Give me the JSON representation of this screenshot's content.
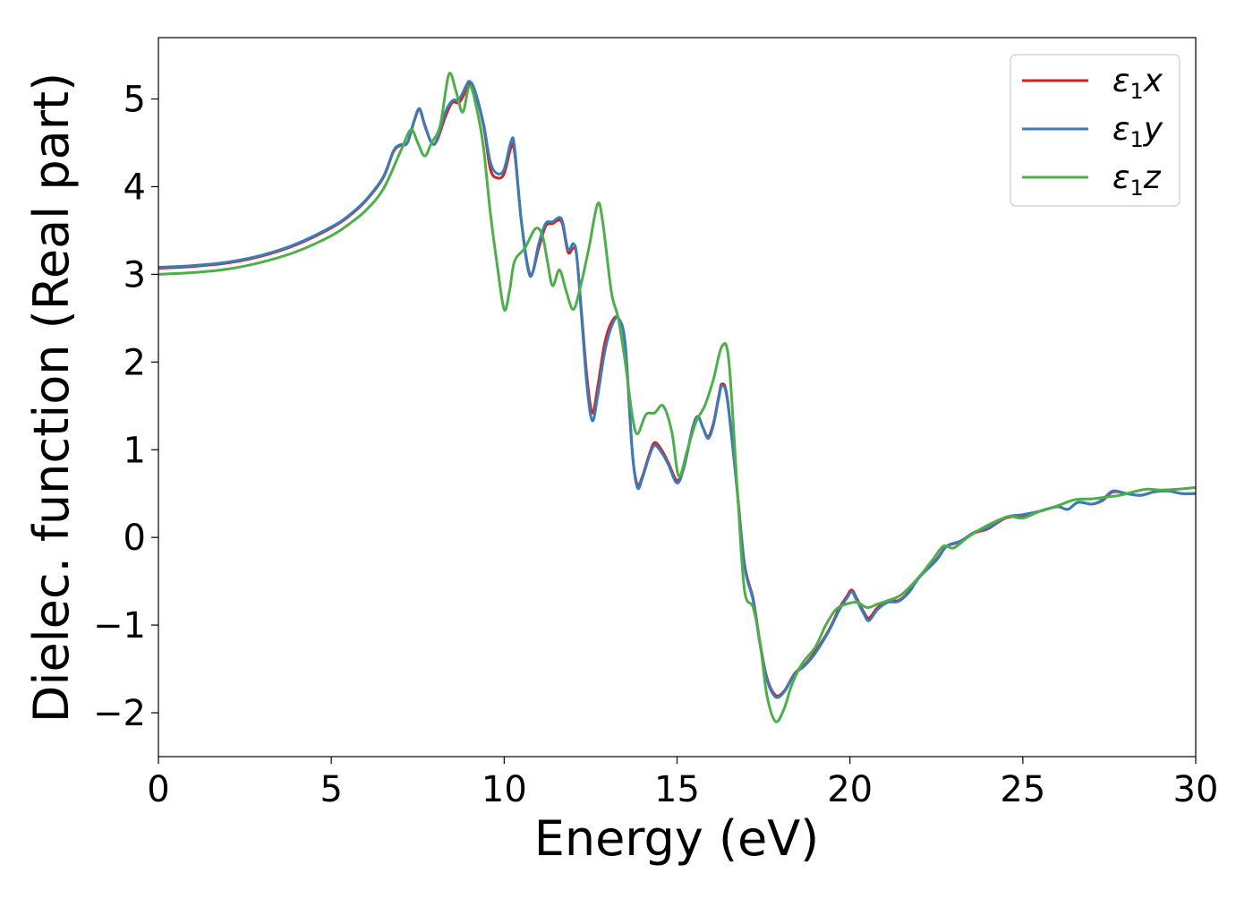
{
  "chart_data": {
    "type": "line",
    "title": "",
    "xlabel": "Energy (eV)",
    "ylabel": "Dielec. function (Real part)",
    "xlim": [
      0,
      30
    ],
    "ylim": [
      -2.5,
      5.7
    ],
    "xticks": [
      0,
      5,
      10,
      15,
      20,
      25,
      30
    ],
    "xtick_labels": [
      "0",
      "5",
      "10",
      "15",
      "20",
      "25",
      "30"
    ],
    "yticks": [
      -2,
      -1,
      0,
      1,
      2,
      3,
      4,
      5
    ],
    "ytick_labels": [
      "−2",
      "−1",
      "0",
      "1",
      "2",
      "3",
      "4",
      "5"
    ],
    "grid": false,
    "legend_position": "top-right",
    "series": [
      {
        "name": "ε1x",
        "legend_base": "ε",
        "legend_sub": "1",
        "legend_var": "x",
        "color": "#e41a1c",
        "points": [
          [
            0,
            3.07
          ],
          [
            1,
            3.09
          ],
          [
            2,
            3.13
          ],
          [
            3,
            3.21
          ],
          [
            4,
            3.34
          ],
          [
            5,
            3.53
          ],
          [
            5.5,
            3.66
          ],
          [
            6,
            3.84
          ],
          [
            6.5,
            4.1
          ],
          [
            6.8,
            4.4
          ],
          [
            7.0,
            4.47
          ],
          [
            7.2,
            4.5
          ],
          [
            7.4,
            4.75
          ],
          [
            7.55,
            4.88
          ],
          [
            7.7,
            4.7
          ],
          [
            7.9,
            4.5
          ],
          [
            8.05,
            4.52
          ],
          [
            8.3,
            4.8
          ],
          [
            8.5,
            4.96
          ],
          [
            8.7,
            4.96
          ],
          [
            8.9,
            5.1
          ],
          [
            9.0,
            5.18
          ],
          [
            9.15,
            5.08
          ],
          [
            9.4,
            4.7
          ],
          [
            9.6,
            4.2
          ],
          [
            9.8,
            4.1
          ],
          [
            10.0,
            4.15
          ],
          [
            10.2,
            4.45
          ],
          [
            10.3,
            4.4
          ],
          [
            10.5,
            3.6
          ],
          [
            10.75,
            3.0
          ],
          [
            11.0,
            3.3
          ],
          [
            11.2,
            3.55
          ],
          [
            11.4,
            3.58
          ],
          [
            11.6,
            3.62
          ],
          [
            11.7,
            3.55
          ],
          [
            11.85,
            3.25
          ],
          [
            12.0,
            3.3
          ],
          [
            12.1,
            3.2
          ],
          [
            12.25,
            2.5
          ],
          [
            12.4,
            1.8
          ],
          [
            12.55,
            1.42
          ],
          [
            12.7,
            1.7
          ],
          [
            12.9,
            2.2
          ],
          [
            13.1,
            2.45
          ],
          [
            13.3,
            2.5
          ],
          [
            13.5,
            2.2
          ],
          [
            13.7,
            1.0
          ],
          [
            13.85,
            0.6
          ],
          [
            14.0,
            0.7
          ],
          [
            14.2,
            0.95
          ],
          [
            14.35,
            1.08
          ],
          [
            14.55,
            1.0
          ],
          [
            14.75,
            0.85
          ],
          [
            15.0,
            0.65
          ],
          [
            15.2,
            0.8
          ],
          [
            15.45,
            1.25
          ],
          [
            15.6,
            1.38
          ],
          [
            15.75,
            1.25
          ],
          [
            15.9,
            1.15
          ],
          [
            16.05,
            1.3
          ],
          [
            16.2,
            1.6
          ],
          [
            16.3,
            1.75
          ],
          [
            16.45,
            1.6
          ],
          [
            16.7,
            0.7
          ],
          [
            16.95,
            -0.3
          ],
          [
            17.2,
            -0.7
          ],
          [
            17.4,
            -1.2
          ],
          [
            17.6,
            -1.6
          ],
          [
            17.85,
            -1.8
          ],
          [
            18.1,
            -1.75
          ],
          [
            18.4,
            -1.55
          ],
          [
            18.7,
            -1.45
          ],
          [
            19.0,
            -1.3
          ],
          [
            19.4,
            -1.05
          ],
          [
            19.7,
            -0.8
          ],
          [
            19.9,
            -0.68
          ],
          [
            20.05,
            -0.6
          ],
          [
            20.2,
            -0.7
          ],
          [
            20.4,
            -0.85
          ],
          [
            20.55,
            -0.92
          ],
          [
            20.8,
            -0.8
          ],
          [
            21.1,
            -0.72
          ],
          [
            21.4,
            -0.72
          ],
          [
            21.7,
            -0.62
          ],
          [
            22.0,
            -0.45
          ],
          [
            22.5,
            -0.25
          ],
          [
            22.8,
            -0.1
          ],
          [
            23.2,
            -0.05
          ],
          [
            23.6,
            0.05
          ],
          [
            24.0,
            0.1
          ],
          [
            24.5,
            0.22
          ],
          [
            25.0,
            0.25
          ],
          [
            25.5,
            0.3
          ],
          [
            26.0,
            0.35
          ],
          [
            26.3,
            0.32
          ],
          [
            26.6,
            0.4
          ],
          [
            27.0,
            0.38
          ],
          [
            27.3,
            0.42
          ],
          [
            27.6,
            0.52
          ],
          [
            28.0,
            0.5
          ],
          [
            28.4,
            0.48
          ],
          [
            28.8,
            0.52
          ],
          [
            29.2,
            0.53
          ],
          [
            29.6,
            0.5
          ],
          [
            30,
            0.5
          ]
        ]
      },
      {
        "name": "ε1y",
        "legend_base": "ε",
        "legend_sub": "1",
        "legend_var": "y",
        "color": "#377eb8",
        "points": [
          [
            0,
            3.08
          ],
          [
            1,
            3.1
          ],
          [
            2,
            3.14
          ],
          [
            3,
            3.22
          ],
          [
            4,
            3.35
          ],
          [
            5,
            3.54
          ],
          [
            5.5,
            3.67
          ],
          [
            6,
            3.85
          ],
          [
            6.5,
            4.11
          ],
          [
            6.8,
            4.41
          ],
          [
            7.0,
            4.48
          ],
          [
            7.2,
            4.5
          ],
          [
            7.4,
            4.76
          ],
          [
            7.55,
            4.89
          ],
          [
            7.7,
            4.71
          ],
          [
            7.9,
            4.5
          ],
          [
            8.05,
            4.53
          ],
          [
            8.3,
            4.85
          ],
          [
            8.5,
            4.98
          ],
          [
            8.7,
            5.0
          ],
          [
            8.9,
            5.15
          ],
          [
            9.0,
            5.2
          ],
          [
            9.15,
            5.1
          ],
          [
            9.4,
            4.72
          ],
          [
            9.6,
            4.28
          ],
          [
            9.8,
            4.15
          ],
          [
            10.0,
            4.2
          ],
          [
            10.2,
            4.52
          ],
          [
            10.3,
            4.45
          ],
          [
            10.5,
            3.6
          ],
          [
            10.75,
            2.98
          ],
          [
            11.0,
            3.35
          ],
          [
            11.2,
            3.58
          ],
          [
            11.4,
            3.6
          ],
          [
            11.6,
            3.65
          ],
          [
            11.7,
            3.58
          ],
          [
            11.85,
            3.28
          ],
          [
            12.0,
            3.35
          ],
          [
            12.1,
            3.2
          ],
          [
            12.25,
            2.45
          ],
          [
            12.4,
            1.7
          ],
          [
            12.55,
            1.33
          ],
          [
            12.7,
            1.6
          ],
          [
            12.9,
            2.1
          ],
          [
            13.1,
            2.4
          ],
          [
            13.3,
            2.5
          ],
          [
            13.5,
            2.2
          ],
          [
            13.7,
            1.0
          ],
          [
            13.85,
            0.57
          ],
          [
            14.0,
            0.68
          ],
          [
            14.2,
            0.93
          ],
          [
            14.35,
            1.05
          ],
          [
            14.55,
            0.97
          ],
          [
            14.75,
            0.83
          ],
          [
            15.0,
            0.62
          ],
          [
            15.2,
            0.8
          ],
          [
            15.45,
            1.25
          ],
          [
            15.6,
            1.38
          ],
          [
            15.75,
            1.25
          ],
          [
            15.9,
            1.13
          ],
          [
            16.05,
            1.28
          ],
          [
            16.2,
            1.58
          ],
          [
            16.3,
            1.73
          ],
          [
            16.45,
            1.58
          ],
          [
            16.7,
            0.68
          ],
          [
            16.95,
            -0.32
          ],
          [
            17.2,
            -0.72
          ],
          [
            17.4,
            -1.22
          ],
          [
            17.6,
            -1.62
          ],
          [
            17.85,
            -1.82
          ],
          [
            18.1,
            -1.76
          ],
          [
            18.4,
            -1.56
          ],
          [
            18.7,
            -1.46
          ],
          [
            19.0,
            -1.32
          ],
          [
            19.4,
            -1.06
          ],
          [
            19.7,
            -0.82
          ],
          [
            19.9,
            -0.7
          ],
          [
            20.05,
            -0.62
          ],
          [
            20.2,
            -0.72
          ],
          [
            20.4,
            -0.87
          ],
          [
            20.55,
            -0.95
          ],
          [
            20.8,
            -0.82
          ],
          [
            21.1,
            -0.74
          ],
          [
            21.4,
            -0.73
          ],
          [
            21.7,
            -0.63
          ],
          [
            22.0,
            -0.46
          ],
          [
            22.5,
            -0.26
          ],
          [
            22.8,
            -0.1
          ],
          [
            23.2,
            -0.04
          ],
          [
            23.6,
            0.06
          ],
          [
            24.0,
            0.11
          ],
          [
            24.5,
            0.23
          ],
          [
            25.0,
            0.26
          ],
          [
            25.5,
            0.3
          ],
          [
            26.0,
            0.35
          ],
          [
            26.3,
            0.32
          ],
          [
            26.6,
            0.4
          ],
          [
            27.0,
            0.38
          ],
          [
            27.3,
            0.43
          ],
          [
            27.6,
            0.53
          ],
          [
            28.0,
            0.5
          ],
          [
            28.4,
            0.48
          ],
          [
            28.8,
            0.52
          ],
          [
            29.2,
            0.53
          ],
          [
            29.6,
            0.5
          ],
          [
            30,
            0.5
          ]
        ]
      },
      {
        "name": "ε1z",
        "legend_base": "ε",
        "legend_sub": "1",
        "legend_var": "z",
        "color": "#4daf4a",
        "points": [
          [
            0,
            3.0
          ],
          [
            1,
            3.02
          ],
          [
            2,
            3.06
          ],
          [
            3,
            3.14
          ],
          [
            4,
            3.26
          ],
          [
            5,
            3.44
          ],
          [
            5.5,
            3.57
          ],
          [
            6,
            3.73
          ],
          [
            6.5,
            3.97
          ],
          [
            7.0,
            4.4
          ],
          [
            7.3,
            4.65
          ],
          [
            7.5,
            4.5
          ],
          [
            7.7,
            4.35
          ],
          [
            7.9,
            4.5
          ],
          [
            8.15,
            4.7
          ],
          [
            8.4,
            5.28
          ],
          [
            8.6,
            5.1
          ],
          [
            8.8,
            4.85
          ],
          [
            9.0,
            5.15
          ],
          [
            9.2,
            4.9
          ],
          [
            9.4,
            4.45
          ],
          [
            9.6,
            3.7
          ],
          [
            9.8,
            3.1
          ],
          [
            10.0,
            2.6
          ],
          [
            10.15,
            2.8
          ],
          [
            10.3,
            3.15
          ],
          [
            10.6,
            3.3
          ],
          [
            10.9,
            3.52
          ],
          [
            11.1,
            3.45
          ],
          [
            11.25,
            3.15
          ],
          [
            11.4,
            2.87
          ],
          [
            11.6,
            3.05
          ],
          [
            11.8,
            2.8
          ],
          [
            12.0,
            2.6
          ],
          [
            12.2,
            2.85
          ],
          [
            12.45,
            3.3
          ],
          [
            12.7,
            3.8
          ],
          [
            12.85,
            3.6
          ],
          [
            13.1,
            2.8
          ],
          [
            13.3,
            2.5
          ],
          [
            13.5,
            2.0
          ],
          [
            13.7,
            1.4
          ],
          [
            13.85,
            1.18
          ],
          [
            14.1,
            1.4
          ],
          [
            14.35,
            1.42
          ],
          [
            14.6,
            1.5
          ],
          [
            14.85,
            1.2
          ],
          [
            15.05,
            0.7
          ],
          [
            15.3,
            1.0
          ],
          [
            15.55,
            1.32
          ],
          [
            15.8,
            1.5
          ],
          [
            16.05,
            1.8
          ],
          [
            16.3,
            2.18
          ],
          [
            16.5,
            2.0
          ],
          [
            16.75,
            0.5
          ],
          [
            16.95,
            -0.6
          ],
          [
            17.2,
            -0.8
          ],
          [
            17.4,
            -1.2
          ],
          [
            17.6,
            -1.8
          ],
          [
            17.85,
            -2.1
          ],
          [
            18.1,
            -1.95
          ],
          [
            18.3,
            -1.7
          ],
          [
            18.6,
            -1.45
          ],
          [
            19.0,
            -1.25
          ],
          [
            19.3,
            -1.0
          ],
          [
            19.6,
            -0.82
          ],
          [
            19.9,
            -0.76
          ],
          [
            20.2,
            -0.74
          ],
          [
            20.5,
            -0.8
          ],
          [
            20.8,
            -0.76
          ],
          [
            21.1,
            -0.72
          ],
          [
            21.5,
            -0.65
          ],
          [
            22.0,
            -0.45
          ],
          [
            22.4,
            -0.25
          ],
          [
            22.7,
            -0.1
          ],
          [
            23.0,
            -0.12
          ],
          [
            23.4,
            0.0
          ],
          [
            23.8,
            0.1
          ],
          [
            24.2,
            0.18
          ],
          [
            24.6,
            0.24
          ],
          [
            25.0,
            0.22
          ],
          [
            25.5,
            0.3
          ],
          [
            26.0,
            0.36
          ],
          [
            26.5,
            0.43
          ],
          [
            27.0,
            0.44
          ],
          [
            27.4,
            0.46
          ],
          [
            27.8,
            0.48
          ],
          [
            28.2,
            0.52
          ],
          [
            28.6,
            0.55
          ],
          [
            29.0,
            0.54
          ],
          [
            29.5,
            0.55
          ],
          [
            30,
            0.57
          ]
        ]
      }
    ]
  }
}
